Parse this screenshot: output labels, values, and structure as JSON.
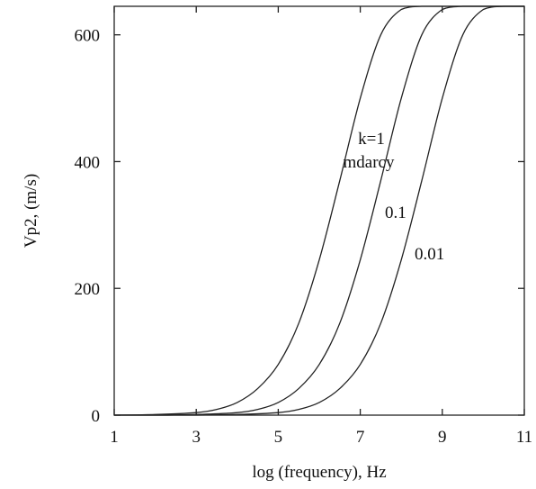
{
  "chart_data": {
    "type": "line",
    "title": "",
    "xlabel": "log (frequency), Hz",
    "ylabel": "Vp2, (m/s)",
    "xlim": [
      1,
      11
    ],
    "ylim": [
      0,
      645
    ],
    "xticks": [
      1,
      3,
      5,
      7,
      9,
      11
    ],
    "yticks": [
      0,
      200,
      400,
      600
    ],
    "grid": false,
    "series": [
      {
        "label": "k=1 mdarcy",
        "x": [
          1,
          2,
          3,
          3.5,
          4,
          4.5,
          5,
          5.5,
          6,
          6.5,
          7,
          7.5,
          8,
          8.5,
          9,
          9.5,
          10,
          11
        ],
        "y": [
          0,
          1,
          4,
          9,
          20,
          42,
          80,
          145,
          245,
          370,
          500,
          600,
          640,
          645,
          645,
          645,
          645,
          645
        ]
      },
      {
        "label": "0.1",
        "x": [
          1,
          2,
          3,
          4,
          4.5,
          5,
          5.5,
          6,
          6.5,
          7,
          7.5,
          8,
          8.5,
          9,
          9.5,
          10,
          11
        ],
        "y": [
          0,
          0,
          1,
          4,
          9,
          20,
          42,
          80,
          145,
          245,
          370,
          500,
          600,
          640,
          645,
          645,
          645
        ]
      },
      {
        "label": "0.01",
        "x": [
          1,
          3,
          4,
          5,
          5.5,
          6,
          6.5,
          7,
          7.5,
          8,
          8.5,
          9,
          9.5,
          10,
          10.5,
          11
        ],
        "y": [
          0,
          0,
          1,
          4,
          9,
          20,
          42,
          80,
          145,
          245,
          370,
          500,
          600,
          640,
          645,
          645
        ]
      }
    ],
    "annotations": {
      "k_line1": "k=1",
      "k_line2": "mdarcy",
      "curve2": "0.1",
      "curve3": "0.01"
    }
  }
}
